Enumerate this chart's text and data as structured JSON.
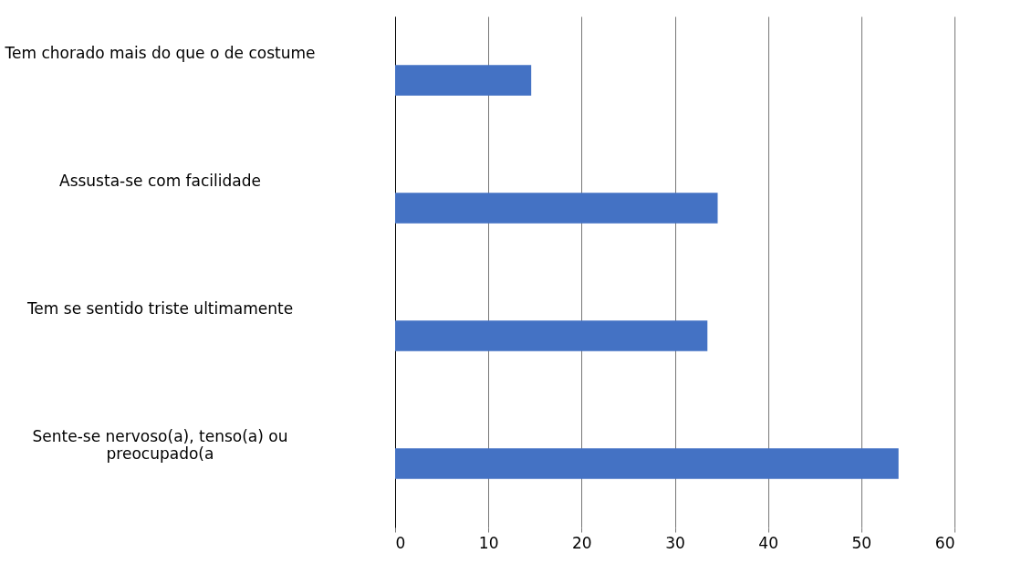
{
  "chart_data": {
    "type": "bar",
    "orientation": "horizontal",
    "categories": [
      "Tem chorado mais do que o de costume",
      "Assusta-se com facilidade",
      "Tem se sentido triste ultimamente",
      "Sente-se nervoso(a), tenso(a) ou preocupado(a"
    ],
    "values": [
      14.6,
      34.6,
      33.5,
      54
    ],
    "color": "#4472c4",
    "xlim": [
      0,
      60
    ],
    "xticks": [
      0,
      10,
      20,
      30,
      40,
      50,
      60
    ],
    "grid": "x"
  }
}
